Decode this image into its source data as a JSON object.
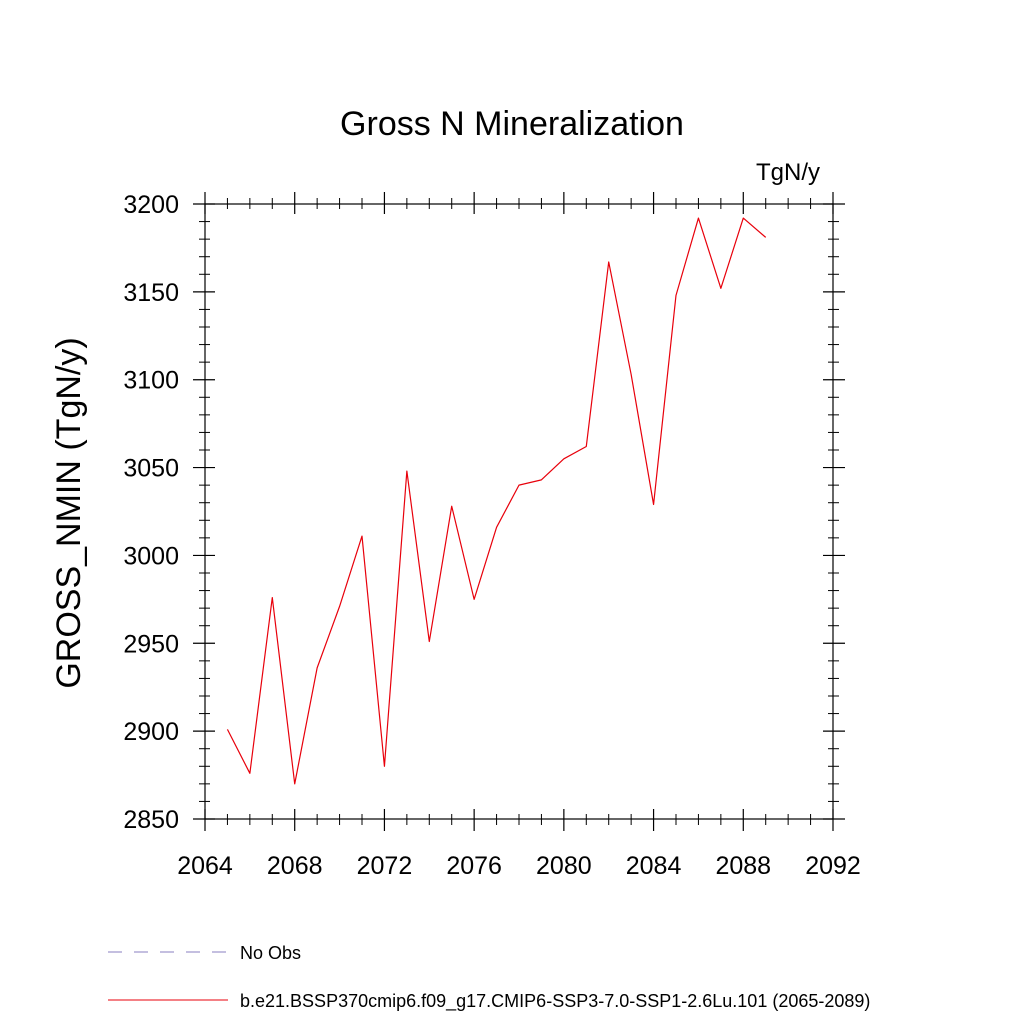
{
  "chart_data": {
    "type": "line",
    "title": "Gross N Mineralization",
    "units_label": "TgN/y",
    "xlabel": "",
    "ylabel": "GROSS_NMIN  (TgN/y)",
    "xlim": [
      2064,
      2092
    ],
    "ylim": [
      2850,
      3200
    ],
    "x_ticks": [
      2064,
      2068,
      2072,
      2076,
      2080,
      2084,
      2088,
      2092
    ],
    "y_ticks": [
      2850,
      2900,
      2950,
      3000,
      3050,
      3100,
      3150,
      3200
    ],
    "grid": false,
    "legend_position": "bottom",
    "legend": [
      {
        "name": "No Obs",
        "style": "dashed",
        "color": "#8a7fc0"
      },
      {
        "name": "b.e21.BSSP370cmip6.f09_g17.CMIP6-SSP3-7.0-SSP1-2.6Lu.101 (2065-2089)",
        "style": "solid",
        "color": "#e8000b"
      }
    ],
    "series": [
      {
        "name": "b.e21.BSSP370cmip6.f09_g17.CMIP6-SSP3-7.0-SSP1-2.6Lu.101 (2065-2089)",
        "color": "#e8000b",
        "x": [
          2065,
          2066,
          2067,
          2068,
          2069,
          2070,
          2071,
          2072,
          2073,
          2074,
          2075,
          2076,
          2077,
          2078,
          2079,
          2080,
          2081,
          2082,
          2083,
          2084,
          2085,
          2086,
          2087,
          2088,
          2089
        ],
        "y": [
          2901,
          2876,
          2976,
          2870,
          2936,
          2971,
          3011,
          2880,
          3048,
          2951,
          3028,
          2975,
          3016,
          3040,
          3043,
          3055,
          3062,
          3167,
          3103,
          3029,
          3148,
          3192,
          3152,
          3192,
          3181
        ]
      }
    ]
  }
}
